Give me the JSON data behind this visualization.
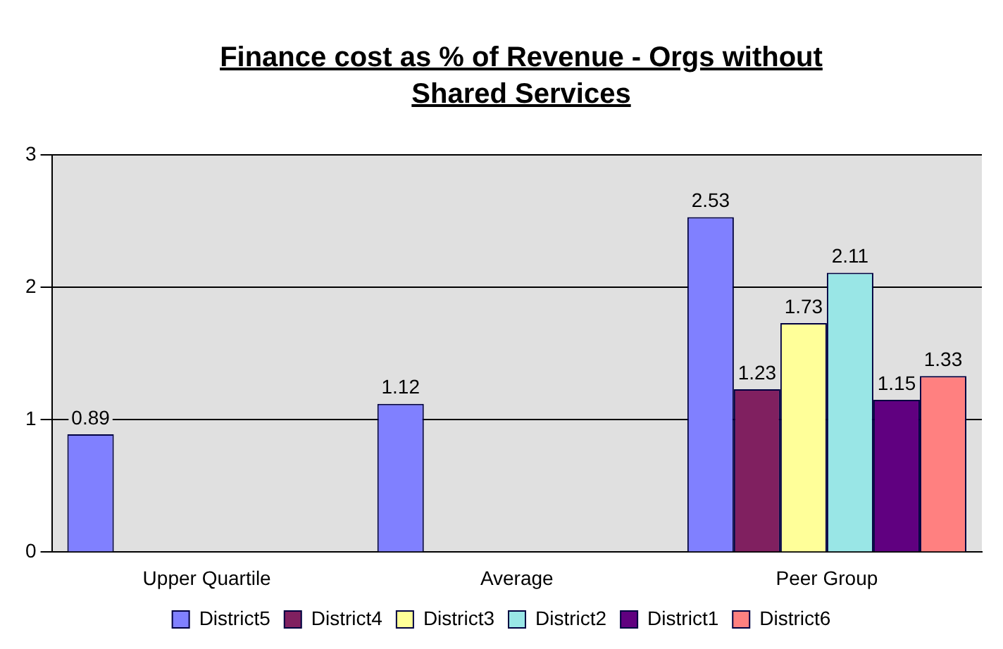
{
  "chart_data": {
    "type": "bar",
    "title": "Finance cost as % of Revenue - Orgs without Shared Services",
    "categories": [
      "Upper Quartile",
      "Average",
      "Peer Group"
    ],
    "series": [
      {
        "name": "District5",
        "color": "#8080ff",
        "values": [
          0.89,
          1.12,
          2.53
        ]
      },
      {
        "name": "District4",
        "color": "#802060",
        "values": [
          null,
          null,
          1.23
        ]
      },
      {
        "name": "District3",
        "color": "#ffff99",
        "values": [
          null,
          null,
          1.73
        ]
      },
      {
        "name": "District2",
        "color": "#99e6e6",
        "values": [
          null,
          null,
          2.11
        ]
      },
      {
        "name": "District1",
        "color": "#600080",
        "values": [
          null,
          null,
          1.15
        ]
      },
      {
        "name": "District6",
        "color": "#ff8080",
        "values": [
          null,
          null,
          1.33
        ]
      }
    ],
    "ylim": [
      0,
      3
    ],
    "yticks": [
      0,
      1,
      2,
      3
    ],
    "grid": "y",
    "legend": "bottom",
    "data_labels": true
  }
}
